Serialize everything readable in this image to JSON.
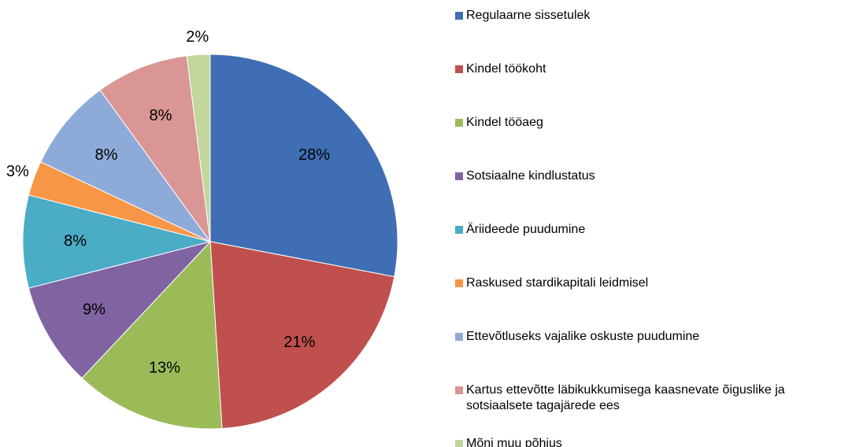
{
  "chart_data": {
    "type": "pie",
    "categories": [
      "Regulaarne sissetulek",
      "Kindel töökoht",
      "Kindel tööaeg",
      "Sotsiaalne kindlustatus",
      "Äriideede puudumine",
      "Raskused stardikapitali leidmisel",
      "Ettevõtluseks vajalike oskuste puudumine",
      "Kartus ettevõtte läbikukkumisega kaasnevate õiguslike ja sotsiaalsete tagajärede ees",
      "Mõni muu põhjus"
    ],
    "values": [
      28,
      21,
      13,
      9,
      8,
      3,
      8,
      8,
      2
    ],
    "value_labels": [
      "28%",
      "21%",
      "13%",
      "9%",
      "8%",
      "3%",
      "8%",
      "8%",
      "2%"
    ],
    "colors": [
      "#3f6eb4",
      "#c0504d",
      "#9bbb59",
      "#8064a2",
      "#4bacc6",
      "#f79646",
      "#8eaad8",
      "#d99694",
      "#c3d69b"
    ],
    "legend": "right"
  }
}
